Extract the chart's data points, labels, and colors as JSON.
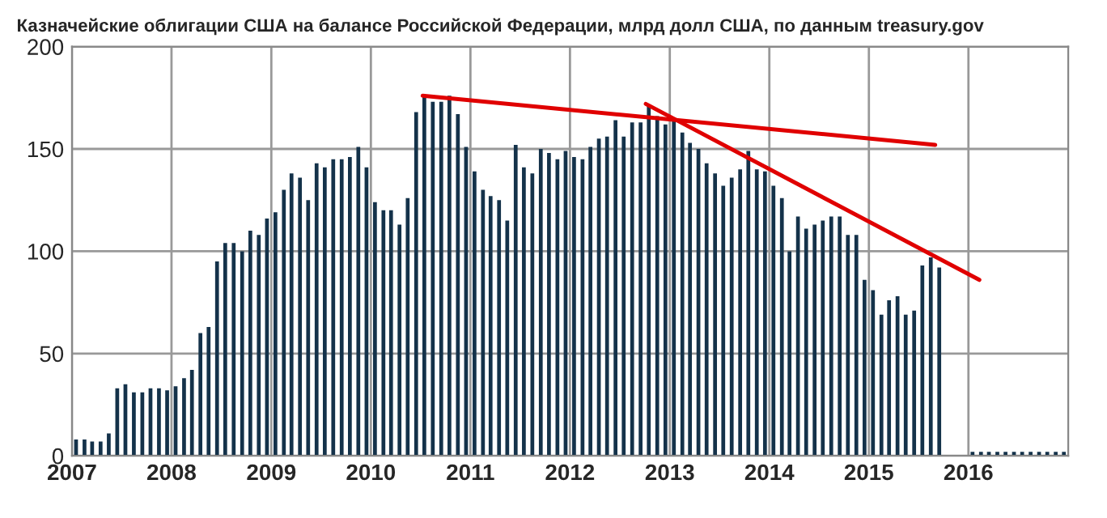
{
  "chart_data": {
    "type": "bar",
    "title": "Казначейские облигации США на балансе Российской Федерации, млрд долл США, по данным treasury.gov",
    "x": [
      "2007-01",
      "2007-02",
      "2007-03",
      "2007-04",
      "2007-05",
      "2007-06",
      "2007-07",
      "2007-08",
      "2007-09",
      "2007-10",
      "2007-11",
      "2007-12",
      "2008-01",
      "2008-02",
      "2008-03",
      "2008-04",
      "2008-05",
      "2008-06",
      "2008-07",
      "2008-08",
      "2008-09",
      "2008-10",
      "2008-11",
      "2008-12",
      "2009-01",
      "2009-02",
      "2009-03",
      "2009-04",
      "2009-05",
      "2009-06",
      "2009-07",
      "2009-08",
      "2009-09",
      "2009-10",
      "2009-11",
      "2009-12",
      "2010-01",
      "2010-02",
      "2010-03",
      "2010-04",
      "2010-05",
      "2010-06",
      "2010-07",
      "2010-08",
      "2010-09",
      "2010-10",
      "2010-11",
      "2010-12",
      "2011-01",
      "2011-02",
      "2011-03",
      "2011-04",
      "2011-05",
      "2011-06",
      "2011-07",
      "2011-08",
      "2011-09",
      "2011-10",
      "2011-11",
      "2011-12",
      "2012-01",
      "2012-02",
      "2012-03",
      "2012-04",
      "2012-05",
      "2012-06",
      "2012-07",
      "2012-08",
      "2012-09",
      "2012-10",
      "2012-11",
      "2012-12",
      "2013-01",
      "2013-02",
      "2013-03",
      "2013-04",
      "2013-05",
      "2013-06",
      "2013-07",
      "2013-08",
      "2013-09",
      "2013-10",
      "2013-11",
      "2013-12",
      "2014-01",
      "2014-02",
      "2014-03",
      "2014-04",
      "2014-05",
      "2014-06",
      "2014-07",
      "2014-08",
      "2014-09",
      "2014-10",
      "2014-11",
      "2014-12",
      "2015-01",
      "2015-02",
      "2015-03",
      "2015-04",
      "2015-05",
      "2015-06",
      "2015-07",
      "2015-08",
      "2015-09",
      "2016-01",
      "2016-02",
      "2016-03",
      "2016-04",
      "2016-05",
      "2016-06",
      "2016-07",
      "2016-08",
      "2016-09",
      "2016-10",
      "2016-11",
      "2016-12"
    ],
    "series": [
      {
        "color": "#14324a",
        "values": [
          8,
          8,
          7,
          7,
          11,
          33,
          35,
          31,
          31,
          33,
          33,
          32,
          34,
          38,
          42,
          60,
          63,
          95,
          104,
          104,
          100,
          110,
          108,
          116,
          119,
          130,
          138,
          136,
          125,
          143,
          141,
          145,
          145,
          146,
          151,
          141,
          124,
          120,
          120,
          113,
          126,
          168,
          176,
          173,
          173,
          176,
          167,
          151,
          139,
          130,
          127,
          125,
          115,
          152,
          141,
          138,
          150,
          148,
          145,
          149,
          146,
          145,
          151,
          155,
          156,
          164,
          156,
          163,
          163,
          171,
          166,
          162,
          164,
          158,
          153,
          150,
          143,
          138,
          132,
          136,
          140,
          149,
          140,
          139,
          132,
          126,
          100,
          117,
          111,
          113,
          115,
          117,
          117,
          108,
          108,
          86,
          81,
          69,
          76,
          78,
          69,
          71,
          93,
          97,
          92,
          2,
          2,
          2,
          2,
          2,
          2,
          2,
          2,
          2,
          2,
          2,
          2
        ]
      },
      {
        "type": "line",
        "color": "#e00000",
        "x": [
          "2010-07-10",
          "2015-09-01"
        ],
        "values": [
          176,
          152
        ]
      },
      {
        "type": "line",
        "color": "#e00000",
        "x": [
          "2012-10-05",
          "2016-02-10"
        ],
        "values": [
          172,
          86
        ]
      }
    ],
    "xlim": [
      "2007-01-01",
      "2017-01-01"
    ],
    "xticks": [
      "2007",
      "2008",
      "2009",
      "2010",
      "2011",
      "2012",
      "2013",
      "2014",
      "2015",
      "2016"
    ],
    "ylim": [
      0,
      200
    ],
    "yticks": [
      0,
      50,
      100,
      150,
      200
    ],
    "grid": true,
    "legend": false
  }
}
